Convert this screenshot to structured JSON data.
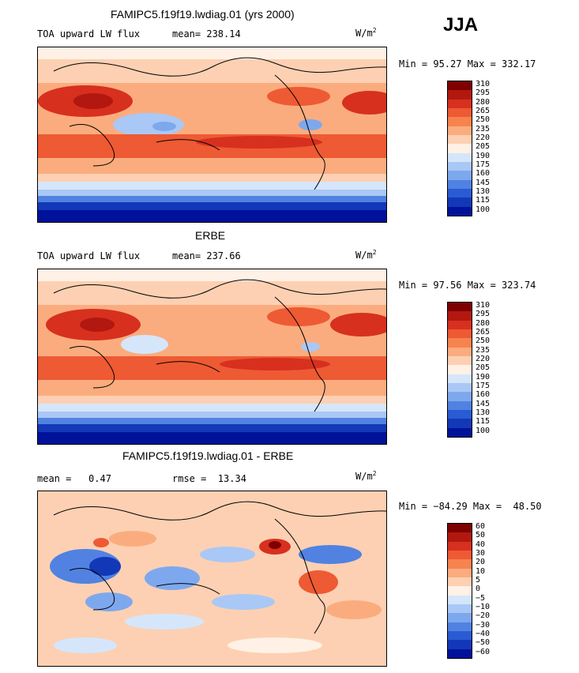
{
  "season": "JJA",
  "panels": [
    {
      "title": "FAMIPC5.f19f19.lwdiag.01 (yrs 2000)",
      "variable": "TOA upward LW flux",
      "stat_left": "",
      "stat_mid": "mean= 238.14",
      "units_base": "W/m",
      "units_exp": "2",
      "minmax": "Min =  95.27 Max = 332.17",
      "levels": [
        "310",
        "295",
        "280",
        "265",
        "250",
        "235",
        "220",
        "205",
        "190",
        "175",
        "160",
        "145",
        "130",
        "115",
        "100"
      ],
      "colors": [
        "#7f0000",
        "#b2180f",
        "#d7301f",
        "#ee5a33",
        "#f7834f",
        "#fbac7e",
        "#fdd0b3",
        "#fff1e5",
        "#d5e6fb",
        "#a9c8f5",
        "#7ea8ee",
        "#5182e2",
        "#2a5bd3",
        "#1238b8",
        "#00129a"
      ]
    },
    {
      "title": "ERBE",
      "variable": "TOA upward LW flux",
      "stat_left": "",
      "stat_mid": "mean= 237.66",
      "units_base": "W/m",
      "units_exp": "2",
      "minmax": "Min =  97.56 Max = 323.74",
      "levels": [
        "310",
        "295",
        "280",
        "265",
        "250",
        "235",
        "220",
        "205",
        "190",
        "175",
        "160",
        "145",
        "130",
        "115",
        "100"
      ],
      "colors": [
        "#7f0000",
        "#b2180f",
        "#d7301f",
        "#ee5a33",
        "#f7834f",
        "#fbac7e",
        "#fdd0b3",
        "#fff1e5",
        "#d5e6fb",
        "#a9c8f5",
        "#7ea8ee",
        "#5182e2",
        "#2a5bd3",
        "#1238b8",
        "#00129a"
      ]
    },
    {
      "title": "FAMIPC5.f19f19.lwdiag.01 - ERBE",
      "variable": "",
      "stat_left": "mean =   0.47",
      "stat_mid": "rmse =  13.34",
      "units_base": "W/m",
      "units_exp": "2",
      "minmax": "Min = −84.29 Max =  48.50",
      "levels": [
        "60",
        "50",
        "40",
        "30",
        "20",
        "10",
        "5",
        "0",
        "−5",
        "−10",
        "−20",
        "−30",
        "−40",
        "−50",
        "−60"
      ],
      "colors": [
        "#7f0000",
        "#b2180f",
        "#d7301f",
        "#ee5a33",
        "#f7834f",
        "#fbac7e",
        "#fdd0b3",
        "#fff1e5",
        "#d5e6fb",
        "#a9c8f5",
        "#7ea8ee",
        "#5182e2",
        "#2a5bd3",
        "#1238b8",
        "#00129a"
      ]
    }
  ]
}
